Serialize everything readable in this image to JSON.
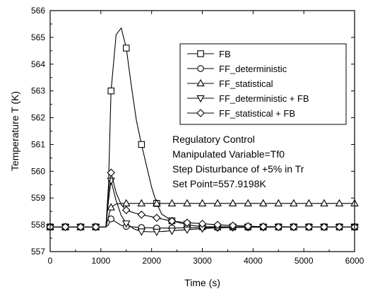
{
  "chart_data": {
    "type": "line",
    "xlabel": "Time (s)",
    "ylabel": "Temperature T (K)",
    "xlim": [
      0,
      6000
    ],
    "ylim": [
      557,
      566
    ],
    "xticks": [
      0,
      1000,
      2000,
      3000,
      4000,
      5000,
      6000
    ],
    "yticks": [
      557,
      558,
      559,
      560,
      561,
      562,
      563,
      564,
      565,
      566
    ],
    "grid": false,
    "legend_position": "top-right",
    "annotations": [
      "Regulatory Control",
      "Manipulated Variable=Tf0",
      "Step Disturbance of +5% in Tr",
      "Set Point=557.9198K"
    ],
    "series": [
      {
        "name": "FB",
        "marker": "square",
        "x": [
          0,
          300,
          600,
          900,
          1100,
          1150,
          1200,
          1300,
          1400,
          1500,
          1600,
          1700,
          1800,
          1900,
          2000,
          2100,
          2200,
          2400,
          2600,
          2800,
          3000,
          3500,
          4000,
          4500,
          5000,
          5500,
          6000
        ],
        "y": [
          557.92,
          557.92,
          557.92,
          557.92,
          557.92,
          559.5,
          563.0,
          565.1,
          565.35,
          564.6,
          563.2,
          561.9,
          561.0,
          560.2,
          559.4,
          558.8,
          558.4,
          558.15,
          558.05,
          557.98,
          557.93,
          557.92,
          557.92,
          557.92,
          557.92,
          557.92,
          557.92
        ],
        "marker_x": [
          0,
          300,
          600,
          900,
          1200,
          1500,
          1800,
          2100,
          2400,
          2700,
          3000,
          3300,
          3600,
          3900,
          4200,
          4500,
          4800,
          5100,
          5400,
          5700,
          6000
        ],
        "marker_y": [
          557.92,
          557.92,
          557.92,
          557.92,
          563.0,
          564.6,
          561.0,
          558.8,
          558.15,
          558.02,
          557.93,
          557.92,
          557.92,
          557.92,
          557.92,
          557.92,
          557.92,
          557.92,
          557.92,
          557.92,
          557.92
        ]
      },
      {
        "name": "FF_deterministic",
        "marker": "circle",
        "x": [
          0,
          300,
          600,
          900,
          1100,
          1150,
          1200,
          1300,
          1400,
          1500,
          1800,
          2100,
          2400,
          2700,
          3000,
          3500,
          4000,
          5000,
          6000
        ],
        "y": [
          557.92,
          557.92,
          557.92,
          557.92,
          557.92,
          558.0,
          558.22,
          558.1,
          557.98,
          557.94,
          557.9,
          557.88,
          557.88,
          557.89,
          557.9,
          557.91,
          557.92,
          557.92,
          557.92
        ],
        "marker_x": [
          0,
          300,
          600,
          900,
          1200,
          1500,
          1800,
          2100,
          2400,
          2700,
          3000,
          3300,
          3600,
          3900,
          4200,
          4500,
          4800,
          5100,
          5400,
          5700,
          6000
        ],
        "marker_y": [
          557.92,
          557.92,
          557.92,
          557.92,
          558.22,
          557.94,
          557.9,
          557.88,
          557.88,
          557.89,
          557.9,
          557.9,
          557.91,
          557.91,
          557.92,
          557.92,
          557.92,
          557.92,
          557.92,
          557.92,
          557.92
        ]
      },
      {
        "name": "FF_statistical",
        "marker": "triangle-up",
        "x": [
          0,
          300,
          600,
          900,
          1100,
          1150,
          1200,
          1300,
          1400,
          1500,
          1700,
          2000,
          2400,
          3000,
          4000,
          5000,
          6000
        ],
        "y": [
          557.92,
          557.92,
          557.92,
          557.92,
          557.92,
          558.3,
          558.65,
          558.78,
          558.8,
          558.8,
          558.8,
          558.8,
          558.8,
          558.8,
          558.8,
          558.8,
          558.8
        ],
        "marker_x": [
          0,
          300,
          600,
          900,
          1200,
          1500,
          1800,
          2100,
          2400,
          2700,
          3000,
          3300,
          3600,
          3900,
          4200,
          4500,
          4800,
          5100,
          5400,
          5700,
          6000
        ],
        "marker_y": [
          557.92,
          557.92,
          557.92,
          557.92,
          558.65,
          558.8,
          558.8,
          558.8,
          558.8,
          558.8,
          558.8,
          558.8,
          558.8,
          558.8,
          558.8,
          558.8,
          558.8,
          558.8,
          558.8,
          558.8,
          558.8
        ]
      },
      {
        "name": "FF_deterministic + FB",
        "marker": "triangle-down",
        "x": [
          0,
          300,
          600,
          900,
          1100,
          1150,
          1200,
          1300,
          1400,
          1500,
          1650,
          1800,
          2000,
          2200,
          2400,
          2700,
          3000,
          3300,
          3600,
          4000,
          5000,
          6000
        ],
        "y": [
          557.92,
          557.92,
          557.92,
          557.92,
          557.92,
          558.9,
          559.65,
          558.9,
          558.35,
          558.05,
          557.85,
          557.75,
          557.74,
          557.75,
          557.78,
          557.82,
          557.86,
          557.89,
          557.9,
          557.91,
          557.92,
          557.92
        ],
        "marker_x": [
          0,
          300,
          600,
          900,
          1200,
          1500,
          1800,
          2100,
          2400,
          2700,
          3000,
          3300,
          3600,
          3900,
          4200,
          4500,
          4800,
          5100,
          5400,
          5700,
          6000
        ],
        "marker_y": [
          557.92,
          557.92,
          557.92,
          557.92,
          559.65,
          558.05,
          557.75,
          557.74,
          557.78,
          557.82,
          557.86,
          557.89,
          557.9,
          557.91,
          557.91,
          557.92,
          557.92,
          557.92,
          557.92,
          557.92,
          557.92
        ]
      },
      {
        "name": "FF_statistical + FB",
        "marker": "diamond",
        "x": [
          0,
          300,
          600,
          900,
          1100,
          1150,
          1200,
          1300,
          1400,
          1500,
          1650,
          1800,
          2000,
          2200,
          2400,
          2700,
          3000,
          3300,
          3600,
          3900,
          4200,
          5000,
          6000
        ],
        "y": [
          557.92,
          557.92,
          557.92,
          557.92,
          557.92,
          559.2,
          559.95,
          559.2,
          558.75,
          558.55,
          558.45,
          558.38,
          558.3,
          558.22,
          558.14,
          558.08,
          558.04,
          558.0,
          557.97,
          557.95,
          557.93,
          557.92,
          557.92
        ],
        "marker_x": [
          0,
          300,
          600,
          900,
          1200,
          1500,
          1800,
          2100,
          2400,
          2700,
          3000,
          3300,
          3600,
          3900,
          4200,
          4500,
          4800,
          5100,
          5400,
          5700,
          6000
        ],
        "marker_y": [
          557.92,
          557.92,
          557.92,
          557.92,
          559.95,
          558.55,
          558.38,
          558.26,
          558.14,
          558.08,
          558.04,
          558.0,
          557.97,
          557.95,
          557.93,
          557.92,
          557.92,
          557.92,
          557.92,
          557.92,
          557.92
        ]
      }
    ]
  }
}
